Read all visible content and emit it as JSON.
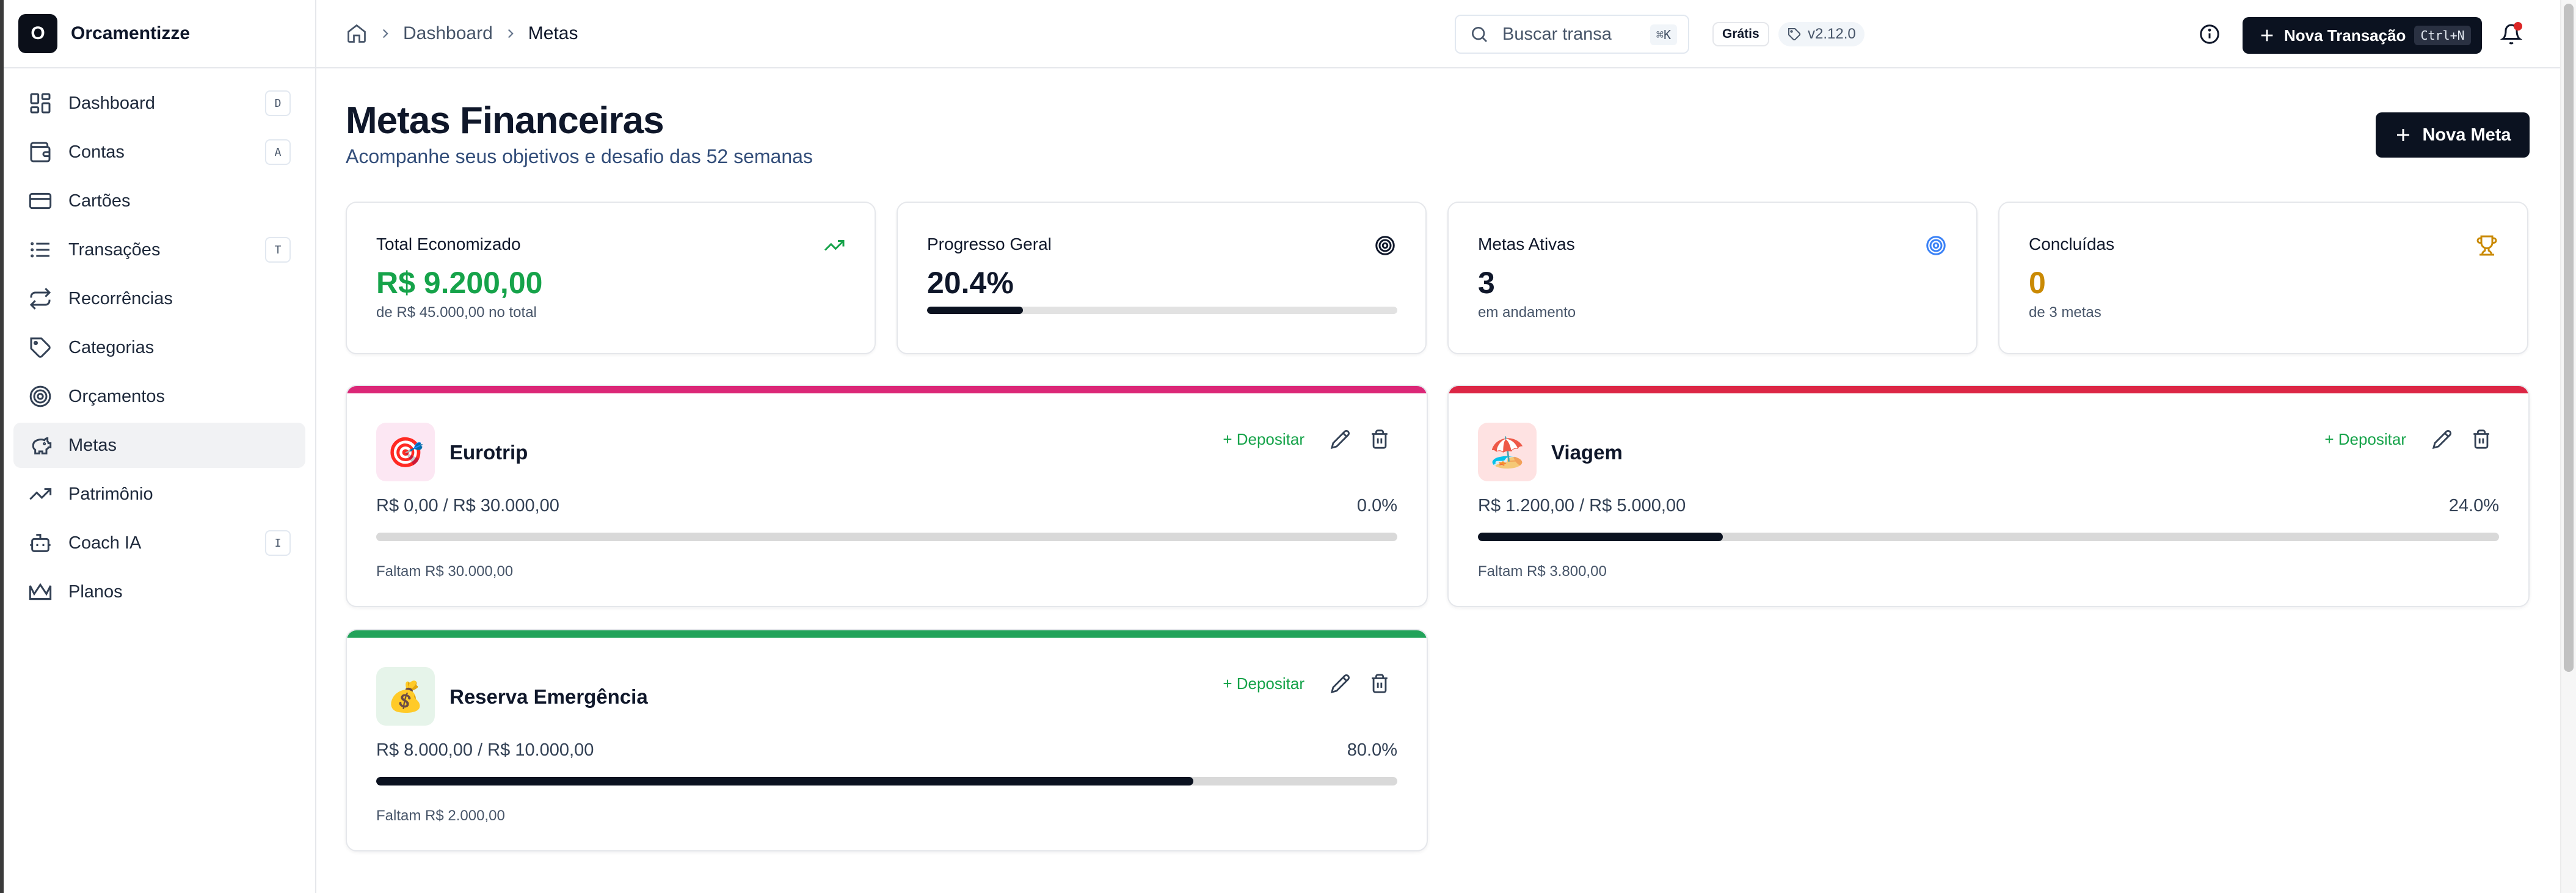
{
  "app": {
    "logo_letter": "O",
    "name": "Orcamentizze"
  },
  "sidebar": {
    "items": [
      {
        "label": "Dashboard",
        "shortcut": "D",
        "icon": "dashboard-icon"
      },
      {
        "label": "Contas",
        "shortcut": "A",
        "icon": "wallet-icon"
      },
      {
        "label": "Cartões",
        "shortcut": "",
        "icon": "credit-card-icon"
      },
      {
        "label": "Transações",
        "shortcut": "T",
        "icon": "list-icon"
      },
      {
        "label": "Recorrências",
        "shortcut": "",
        "icon": "repeat-icon"
      },
      {
        "label": "Categorias",
        "shortcut": "",
        "icon": "tags-icon"
      },
      {
        "label": "Orçamentos",
        "shortcut": "",
        "icon": "target-icon"
      },
      {
        "label": "Metas",
        "shortcut": "",
        "icon": "piggy-bank-icon",
        "active": true
      },
      {
        "label": "Patrimônio",
        "shortcut": "",
        "icon": "trending-up-icon"
      },
      {
        "label": "Coach IA",
        "shortcut": "I",
        "icon": "bot-icon"
      },
      {
        "label": "Planos",
        "shortcut": "",
        "icon": "crown-icon"
      }
    ]
  },
  "header": {
    "breadcrumb": {
      "parent": "Dashboard",
      "current": "Metas"
    },
    "search": {
      "placeholder": "Buscar transações...",
      "shortcut": "⌘K"
    },
    "plan_badge": "Grátis",
    "version": "v2.12.0",
    "new_transaction": {
      "label": "Nova Transação",
      "shortcut": "Ctrl+N"
    }
  },
  "page": {
    "title": "Metas Financeiras",
    "subtitle": "Acompanhe seus objetivos e desafio das 52 semanas",
    "new_goal_label": "Nova Meta"
  },
  "stats": [
    {
      "title": "Total Economizado",
      "value": "R$ 9.200,00",
      "sub": "de R$ 45.000,00 no total",
      "color": "#16a34a",
      "icon": "trending-up-icon"
    },
    {
      "title": "Progresso Geral",
      "value": "20.4%",
      "progress": 0.204,
      "color": "#0f172a",
      "icon": "target-icon"
    },
    {
      "title": "Metas Ativas",
      "value": "3",
      "sub": "em andamento",
      "color": "#0f172a",
      "icon": "target-blue-icon"
    },
    {
      "title": "Concluídas",
      "value": "0",
      "sub": "de 3 metas",
      "color": "#ca8a04",
      "icon": "trophy-icon"
    }
  ],
  "goals": [
    {
      "name": "Eurotrip",
      "emoji": "🎯",
      "emoji_bg": "#fce7f3",
      "accent": "#db2777",
      "amount": "R$ 0,00 / R$ 30.000,00",
      "percent": "0.0%",
      "progress": 0.0,
      "remaining": "Faltam R$ 30.000,00",
      "deposit_label": "+ Depositar"
    },
    {
      "name": "Viagem",
      "emoji": "🏖️",
      "emoji_bg": "#fee2e2",
      "accent": "#dc2645",
      "amount": "R$ 1.200,00 / R$ 5.000,00",
      "percent": "24.0%",
      "progress": 0.24,
      "remaining": "Faltam R$ 3.800,00",
      "deposit_label": "+ Depositar"
    },
    {
      "name": "Reserva Emergência",
      "emoji": "💰",
      "emoji_bg": "#e6f4ea",
      "accent": "#22a35a",
      "amount": "R$ 8.000,00 / R$ 10.000,00",
      "percent": "80.0%",
      "progress": 0.8,
      "remaining": "Faltam R$ 2.000,00",
      "deposit_label": "+ Depositar"
    }
  ]
}
